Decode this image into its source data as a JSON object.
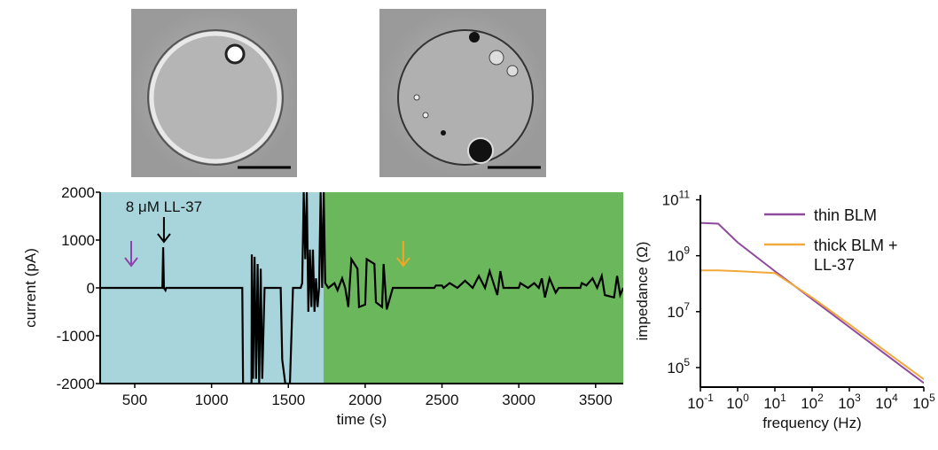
{
  "chart_data": [
    {
      "type": "line",
      "xlabel": "time (s)",
      "ylabel": "current (pA)",
      "xlim": [
        275,
        3680
      ],
      "xticks": [
        500,
        1000,
        1500,
        2000,
        2500,
        3000,
        3500
      ],
      "ylim": [
        -2000,
        2000
      ],
      "yticks": [
        -2000,
        -1000,
        0,
        1000,
        2000
      ],
      "regions": [
        {
          "x": [
            275,
            1729
          ],
          "color": "#a8d5db"
        },
        {
          "x": [
            1729,
            3680
          ],
          "color": "#6bb75c"
        }
      ],
      "arrows": [
        {
          "x": 477,
          "color": "#8e44ad"
        },
        {
          "x": 690,
          "color": "#000000"
        },
        {
          "x": 2248,
          "color": "#f5a623"
        }
      ],
      "annotations": [
        {
          "text": "8 μM LL-37",
          "x": 690
        }
      ],
      "series": [
        {
          "color": "#000000",
          "x": [
            275,
            680,
            685,
            690,
            700,
            705,
            1200,
            1205,
            1260,
            1262,
            1270,
            1280,
            1290,
            1300,
            1310,
            1320,
            1330,
            1345,
            1450,
            1460,
            1480,
            1510,
            1530,
            1580,
            1590,
            1600,
            1610,
            1620,
            1630,
            1640,
            1650,
            1660,
            1670,
            1680,
            1690,
            1700,
            1710,
            1720,
            1730,
            1740,
            1760,
            1800,
            1820,
            1850,
            1870,
            1890,
            1910,
            1950,
            1960,
            2000,
            2010,
            2060,
            2070,
            2110,
            2120,
            2140,
            2180,
            2450,
            2460,
            2500,
            2510,
            2550,
            2600,
            2650,
            2700,
            2740,
            2780,
            2810,
            2860,
            2880,
            2900,
            3000,
            3010,
            3060,
            3100,
            3130,
            3150,
            3170,
            3200,
            3240,
            3260,
            3400,
            3410,
            3440,
            3480,
            3510,
            3540,
            3560,
            3620,
            3640,
            3660,
            3680
          ],
          "values": [
            0,
            0,
            850,
            0,
            -50,
            0,
            0,
            -2000,
            -2000,
            700,
            -1900,
            650,
            -1900,
            500,
            -2000,
            400,
            -1900,
            0,
            0,
            -1500,
            -2000,
            -2000,
            0,
            0,
            100,
            2000,
            600,
            2000,
            -500,
            800,
            -400,
            800,
            -500,
            200,
            -400,
            0,
            2000,
            0,
            2000,
            100,
            0,
            100,
            -50,
            200,
            0,
            -400,
            600,
            400,
            -400,
            -350,
            600,
            500,
            -300,
            -400,
            500,
            -450,
            0,
            0,
            50,
            50,
            0,
            100,
            0,
            150,
            0,
            250,
            0,
            350,
            -150,
            350,
            0,
            0,
            100,
            0,
            100,
            0,
            200,
            -200,
            200,
            -100,
            0,
            0,
            100,
            50,
            200,
            0,
            250,
            -150,
            -200,
            250,
            -150,
            0
          ]
        }
      ]
    },
    {
      "type": "line",
      "xlabel": "frequency (Hz)",
      "ylabel": "impedance (Ω)",
      "xlog": true,
      "ylog": true,
      "legend": "upper right",
      "xlim": [
        0.1,
        100000
      ],
      "xticks": [
        {
          "value": 0.1,
          "label": "10",
          "exponent": "-1"
        },
        {
          "value": 1,
          "label": "10",
          "exponent": "0"
        },
        {
          "value": 10,
          "label": "10",
          "exponent": "1"
        },
        {
          "value": 100,
          "label": "10",
          "exponent": "2"
        },
        {
          "value": 1000,
          "label": "10",
          "exponent": "3"
        },
        {
          "value": 10000,
          "label": "10",
          "exponent": "4"
        },
        {
          "value": 100000,
          "label": "10",
          "exponent": "5"
        }
      ],
      "ylim": [
        20000,
        150000000000
      ],
      "yticks": [
        {
          "value": 100000,
          "label": "10",
          "exponent": "5"
        },
        {
          "value": 10000000,
          "label": "10",
          "exponent": "7"
        },
        {
          "value": 1000000000,
          "label": "10",
          "exponent": "9"
        },
        {
          "value": 100000000000,
          "label": "10",
          "exponent": "11"
        }
      ],
      "x": [
        0.1,
        0.3,
        1,
        10,
        100,
        1000,
        10000,
        100000
      ],
      "series": [
        {
          "name": "thin BLM",
          "color": "#8e4a9c",
          "values": [
            15000000000,
            14000000000,
            3000000000,
            280000000,
            28000000,
            2800000,
            280000,
            28000
          ]
        },
        {
          "name": "thick BLM + LL-37",
          "color": "#f2a93b",
          "values": [
            300000000,
            300000000,
            280000000,
            240000000,
            32000000,
            3500000,
            360000,
            38000
          ]
        }
      ]
    }
  ]
}
